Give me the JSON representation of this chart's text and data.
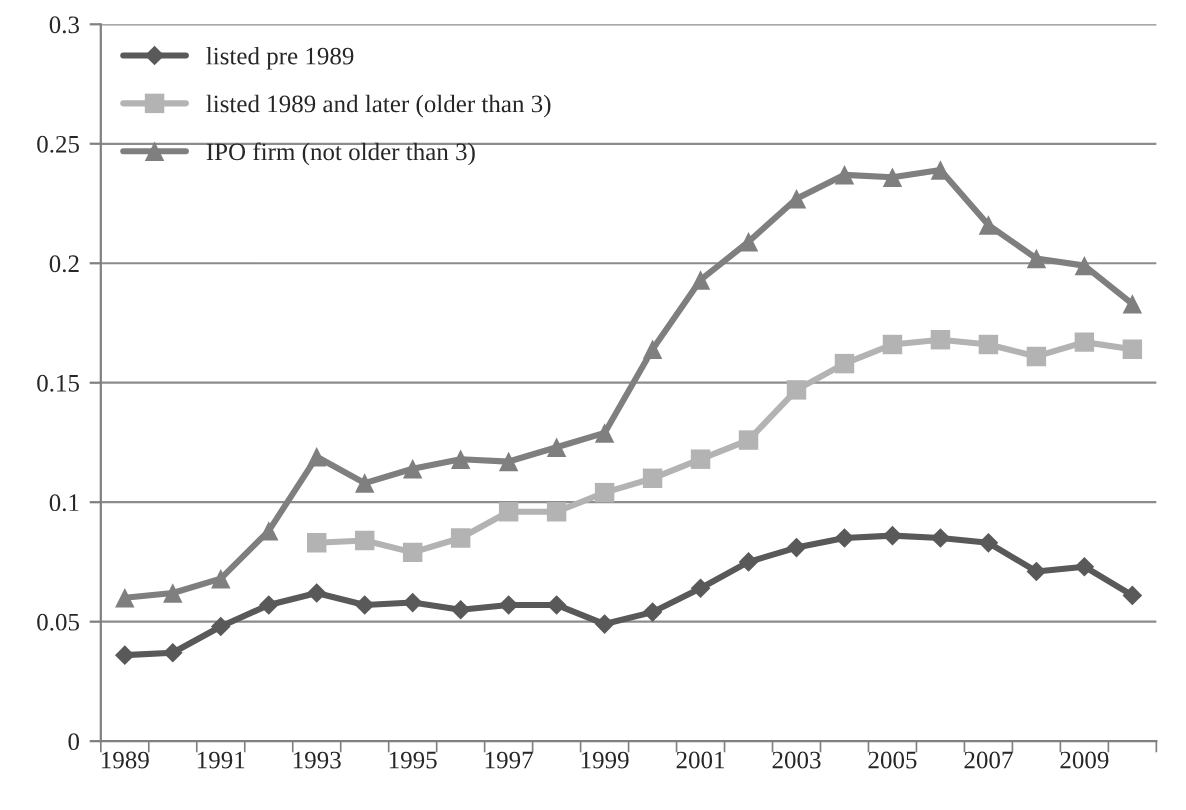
{
  "chart_data": {
    "type": "line",
    "categories": [
      "1989",
      null,
      "1991",
      null,
      "1993",
      null,
      "1995",
      null,
      "1997",
      null,
      "1999",
      null,
      "2001",
      null,
      "2003",
      null,
      "2005",
      null,
      "2007",
      null,
      "2009",
      null
    ],
    "series": [
      {
        "name": "listed pre 1989",
        "color": "#595959",
        "marker": "diamond",
        "values": [
          0.036,
          0.037,
          0.048,
          0.057,
          0.062,
          0.057,
          0.058,
          0.055,
          0.057,
          0.057,
          0.049,
          0.054,
          0.064,
          0.075,
          0.081,
          0.085,
          0.086,
          0.085,
          0.083,
          0.071,
          0.073,
          0.061
        ]
      },
      {
        "name": "listed 1989 and later (older than 3)",
        "color": "#b3b3b3",
        "marker": "square",
        "values": [
          null,
          null,
          null,
          null,
          0.083,
          0.084,
          0.079,
          0.085,
          0.096,
          0.096,
          0.104,
          0.11,
          0.118,
          0.126,
          0.147,
          0.158,
          0.166,
          0.168,
          0.166,
          0.161,
          0.167,
          0.164
        ]
      },
      {
        "name": "IPO firm (not older than 3)",
        "color": "#7f7f7f",
        "marker": "triangle",
        "values": [
          0.06,
          0.062,
          0.068,
          0.088,
          0.119,
          0.108,
          0.114,
          0.118,
          0.117,
          0.123,
          0.129,
          0.164,
          0.193,
          0.209,
          0.227,
          0.237,
          0.236,
          0.239,
          0.216,
          0.202,
          0.199,
          0.183
        ]
      }
    ],
    "ylim": [
      0,
      0.3
    ],
    "yticks": [
      0,
      0.05,
      0.1,
      0.15,
      0.2,
      0.25,
      0.3
    ],
    "grid": "y",
    "legend": "top left",
    "line_style": "solid"
  }
}
